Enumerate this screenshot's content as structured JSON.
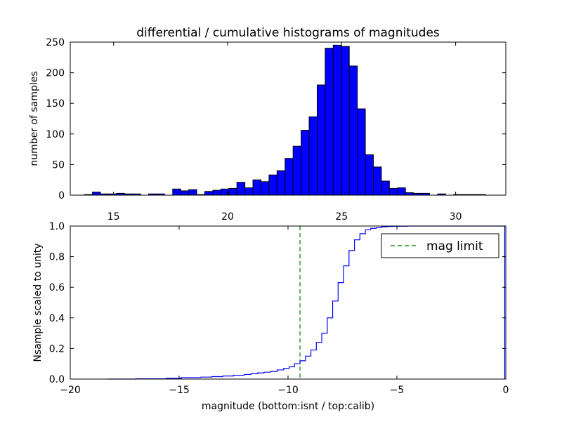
{
  "chart_data": [
    {
      "type": "bar",
      "title": "differential / cumulative histograms of magnitudes",
      "xlabel": "",
      "ylabel": "number of samples",
      "xlim": [
        13.1,
        32.2
      ],
      "ylim": [
        0,
        250
      ],
      "xticks": [
        "15",
        "20",
        "25",
        "30"
      ],
      "yticks": [
        "0",
        "50",
        "100",
        "150",
        "200",
        "250"
      ],
      "tick_position": "x ticks on bottom axis, y ticks on left",
      "bar_color": "#0000ff",
      "edge_color": "#000000",
      "bin_width": 0.352,
      "bin_start": 13.72,
      "values": [
        1,
        5,
        2,
        2,
        3,
        2,
        2,
        0,
        2,
        2,
        0,
        10,
        7,
        9,
        1,
        6,
        8,
        10,
        11,
        21,
        12,
        25,
        22,
        33,
        40,
        60,
        80,
        106,
        128,
        180,
        240,
        245,
        243,
        211,
        141,
        66,
        46,
        23,
        11,
        12,
        4,
        3,
        3,
        0,
        2,
        0,
        1,
        1,
        1,
        1
      ]
    },
    {
      "type": "line",
      "title": "",
      "xlabel": "magnitude (bottom:isnt / top:calib)",
      "ylabel": "Nsample scaled to unity",
      "xlim": [
        -20,
        0
      ],
      "ylim": [
        0,
        1
      ],
      "xticks": [
        "−20",
        "−15",
        "−10",
        "−5",
        "0"
      ],
      "yticks": [
        "0.0",
        "0.2",
        "0.4",
        "0.6",
        "0.8",
        "1.0"
      ],
      "series": [
        {
          "color": "#0000ff",
          "step": true,
          "x": [
            -18.3,
            -17.0,
            -15.6,
            -14.9,
            -14.0,
            -13.5,
            -13.0,
            -12.5,
            -12.0,
            -11.7,
            -11.4,
            -11.1,
            -10.8,
            -10.5,
            -10.2,
            -9.95,
            -9.7,
            -9.45,
            -9.2,
            -8.95,
            -8.7,
            -8.45,
            -8.2,
            -7.95,
            -7.7,
            -7.45,
            -7.2,
            -6.95,
            -6.7,
            -6.45,
            -6.2,
            -5.95,
            -5.7,
            -5.45,
            -5.2,
            -4.9,
            -4.5,
            -4.0,
            -3.0,
            -2.0,
            -0.05
          ],
          "y": [
            0.0,
            0.002,
            0.005,
            0.01,
            0.013,
            0.016,
            0.02,
            0.025,
            0.03,
            0.035,
            0.04,
            0.045,
            0.05,
            0.06,
            0.07,
            0.08,
            0.1,
            0.12,
            0.15,
            0.19,
            0.24,
            0.3,
            0.4,
            0.51,
            0.63,
            0.74,
            0.84,
            0.91,
            0.95,
            0.975,
            0.985,
            0.99,
            0.995,
            0.997,
            0.998,
            0.999,
            1.0,
            1.0,
            1.0,
            1.0,
            1.0
          ]
        },
        {
          "name": "mag limit",
          "color": "#008000",
          "style": "dashed",
          "x_constant": -9.45
        }
      ],
      "legend": {
        "position": "upper right",
        "entries": [
          "mag limit"
        ]
      }
    }
  ]
}
